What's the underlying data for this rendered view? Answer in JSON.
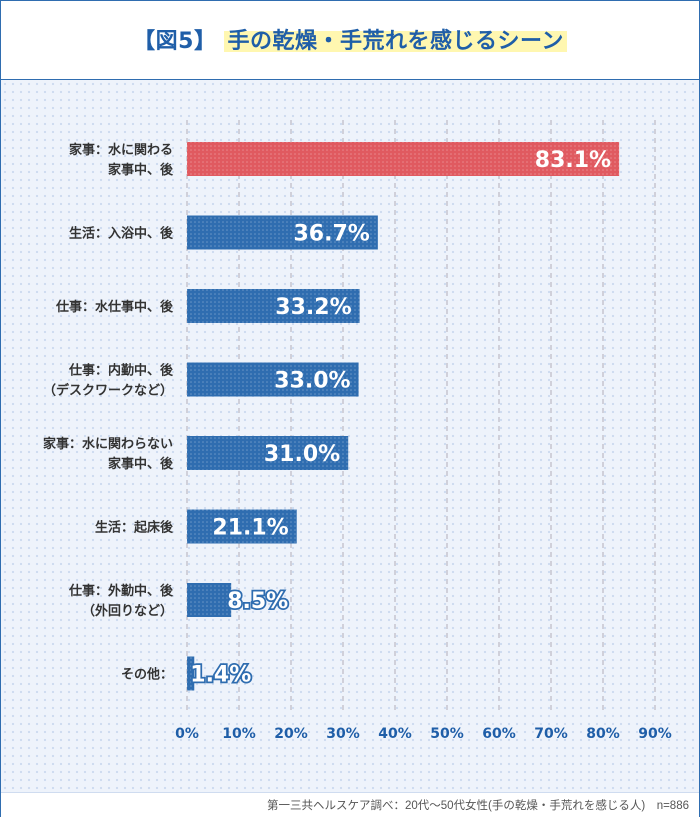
{
  "title": {
    "figure_label": "【図5】",
    "main": "手の乾燥・手荒れを感じるシーン"
  },
  "source_note": "第一三共ヘルスケア調べ：20代〜50代女性(手の乾燥・手荒れを感じる人)　n=886",
  "colors": {
    "highlight": "#e05a60",
    "bar": "#2f6db0",
    "title": "#1f5ea8",
    "grid": "#c8c8d2"
  },
  "chart_data": {
    "type": "bar",
    "orientation": "horizontal",
    "title": "手の乾燥・手荒れを感じるシーン",
    "xlabel": "",
    "ylabel": "",
    "xlim": [
      0,
      90
    ],
    "xticks": [
      "0%",
      "10%",
      "20%",
      "30%",
      "40%",
      "50%",
      "60%",
      "70%",
      "80%",
      "90%"
    ],
    "grid": "vertical dashed",
    "categories": [
      [
        "家事：水に関わる",
        "家事中、後"
      ],
      [
        "生活：入浴中、後"
      ],
      [
        "仕事：水仕事中、後"
      ],
      [
        "仕事：内勤中、後",
        "（デスクワークなど）"
      ],
      [
        "家事：水に関わらない",
        "家事中、後"
      ],
      [
        "生活：起床後"
      ],
      [
        "仕事：外勤中、後",
        "（外回りなど）"
      ],
      [
        "その他："
      ]
    ],
    "values": [
      83.1,
      36.7,
      33.2,
      33.0,
      31.0,
      21.1,
      8.5,
      1.4
    ],
    "value_labels": [
      "83.1%",
      "36.7%",
      "33.2%",
      "33.0%",
      "31.0%",
      "21.1%",
      "8.5%",
      "1.4%"
    ],
    "highlight_index": 0
  }
}
